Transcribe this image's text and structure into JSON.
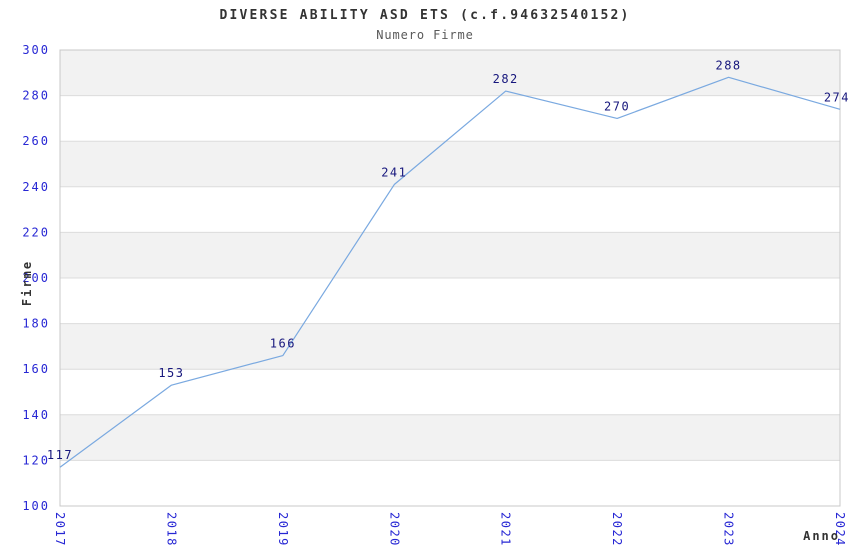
{
  "title": "DIVERSE ABILITY ASD ETS (c.f.94632540152)",
  "subtitle": "Numero Firme",
  "chart_data": {
    "type": "line",
    "title": "DIVERSE ABILITY ASD ETS (c.f.94632540152)",
    "subtitle": "Numero Firme",
    "xlabel": "Anno",
    "ylabel": "Firme",
    "x": [
      "2017",
      "2018",
      "2019",
      "2020",
      "2021",
      "2022",
      "2023",
      "2024"
    ],
    "series": [
      {
        "name": "Numero Firme",
        "values": [
          117,
          153,
          166,
          241,
          282,
          270,
          288,
          274
        ]
      }
    ],
    "point_labels": [
      "117",
      "153",
      "166",
      "241",
      "282",
      "270",
      "288",
      "274"
    ],
    "ylim": [
      100,
      300
    ],
    "ytick_step": 20,
    "yticks": [
      100,
      120,
      140,
      160,
      180,
      200,
      220,
      240,
      260,
      280,
      300
    ],
    "grid": true,
    "legend": "none",
    "colors": {
      "line": "#7aa9e0",
      "tick_label": "#2727d4",
      "value_label": "#17177d",
      "gridline": "#dcdcdc",
      "plot_border": "#c8c8c8",
      "band_gray": "#f2f2f2",
      "band_white": "#ffffff",
      "title_text": "#333333",
      "subtitle_text": "#595959"
    }
  }
}
